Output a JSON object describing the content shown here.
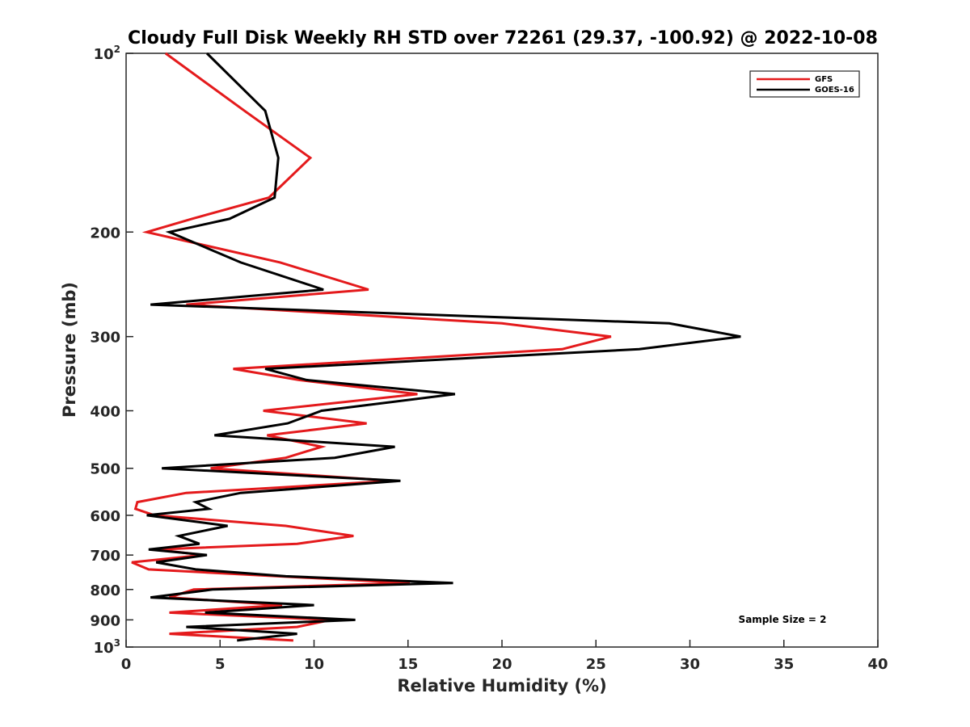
{
  "chart_data": {
    "type": "line",
    "title": "Cloudy Full Disk Weekly RH STD over 72261 (29.37, -100.92) @ 2022-10-08",
    "xlabel": "Relative Humidity (%)",
    "ylabel": "Pressure (mb)",
    "xlim": [
      0,
      40
    ],
    "ylim": [
      100,
      1000
    ],
    "y_scale": "log",
    "y_reversed": true,
    "grid": false,
    "legend_position": "top-right",
    "x_ticks": [
      0,
      5,
      10,
      15,
      20,
      25,
      30,
      35,
      40
    ],
    "y_ticks": [
      {
        "value": 100,
        "base": "10",
        "exp": "2"
      },
      {
        "value": 200,
        "label": "200"
      },
      {
        "value": 300,
        "label": "300"
      },
      {
        "value": 400,
        "label": "400"
      },
      {
        "value": 500,
        "label": "500"
      },
      {
        "value": 600,
        "label": "600"
      },
      {
        "value": 700,
        "label": "700"
      },
      {
        "value": 800,
        "label": "800"
      },
      {
        "value": 900,
        "label": "900"
      },
      {
        "value": 1000,
        "base": "10",
        "exp": "3"
      }
    ],
    "series": [
      {
        "name": "GFS",
        "color": "#e41a1c",
        "points": [
          [
            2.1,
            100
          ],
          [
            6.3,
            125
          ],
          [
            9.8,
            150
          ],
          [
            7.6,
            175
          ],
          [
            3.5,
            190
          ],
          [
            1.1,
            200
          ],
          [
            8.2,
            225
          ],
          [
            12.9,
            250
          ],
          [
            3.2,
            265
          ],
          [
            20.0,
            285
          ],
          [
            25.8,
            300
          ],
          [
            23.2,
            315
          ],
          [
            5.7,
            340
          ],
          [
            9.2,
            355
          ],
          [
            15.5,
            375
          ],
          [
            7.3,
            400
          ],
          [
            12.8,
            420
          ],
          [
            7.5,
            440
          ],
          [
            10.4,
            460
          ],
          [
            8.5,
            480
          ],
          [
            4.5,
            500
          ],
          [
            14.2,
            525
          ],
          [
            3.2,
            550
          ],
          [
            0.6,
            570
          ],
          [
            0.5,
            585
          ],
          [
            1.5,
            600
          ],
          [
            8.5,
            625
          ],
          [
            12.1,
            650
          ],
          [
            9.1,
            670
          ],
          [
            1.6,
            685
          ],
          [
            4.1,
            700
          ],
          [
            0.3,
            720
          ],
          [
            1.2,
            740
          ],
          [
            8.1,
            760
          ],
          [
            15.1,
            780
          ],
          [
            3.6,
            800
          ],
          [
            2.3,
            825
          ],
          [
            8.3,
            850
          ],
          [
            2.3,
            875
          ],
          [
            10.9,
            900
          ],
          [
            9.1,
            925
          ],
          [
            2.3,
            950
          ],
          [
            8.9,
            975
          ]
        ]
      },
      {
        "name": "GOES-16",
        "color": "#000000",
        "points": [
          [
            4.3,
            100
          ],
          [
            7.4,
            125
          ],
          [
            8.1,
            150
          ],
          [
            7.9,
            175
          ],
          [
            5.5,
            190
          ],
          [
            2.3,
            200
          ],
          [
            6.1,
            225
          ],
          [
            10.5,
            250
          ],
          [
            1.3,
            265
          ],
          [
            28.9,
            285
          ],
          [
            32.7,
            300
          ],
          [
            27.3,
            315
          ],
          [
            7.4,
            340
          ],
          [
            9.6,
            355
          ],
          [
            17.5,
            375
          ],
          [
            10.4,
            400
          ],
          [
            8.6,
            420
          ],
          [
            4.7,
            440
          ],
          [
            14.3,
            460
          ],
          [
            11.1,
            480
          ],
          [
            1.9,
            500
          ],
          [
            14.6,
            525
          ],
          [
            6.1,
            550
          ],
          [
            3.7,
            570
          ],
          [
            4.4,
            585
          ],
          [
            1.1,
            600
          ],
          [
            5.4,
            625
          ],
          [
            2.8,
            650
          ],
          [
            3.9,
            670
          ],
          [
            1.2,
            685
          ],
          [
            4.3,
            700
          ],
          [
            1.6,
            720
          ],
          [
            3.7,
            740
          ],
          [
            8.5,
            760
          ],
          [
            17.4,
            780
          ],
          [
            4.6,
            800
          ],
          [
            1.3,
            825
          ],
          [
            10.0,
            850
          ],
          [
            4.2,
            875
          ],
          [
            12.2,
            900
          ],
          [
            3.2,
            925
          ],
          [
            9.1,
            950
          ],
          [
            5.9,
            975
          ]
        ]
      }
    ],
    "annotation": "Sample Size = 2"
  }
}
